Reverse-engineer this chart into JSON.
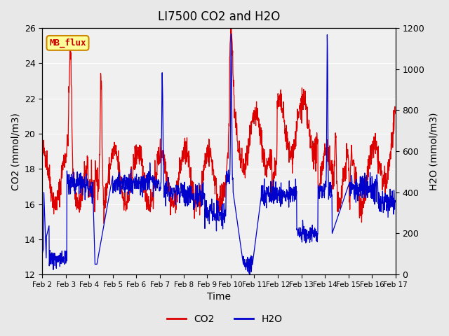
{
  "title": "LI7500 CO2 and H2O",
  "xlabel": "Time",
  "ylabel_left": "CO2 (mmol/m3)",
  "ylabel_right": "H2O (mmol/m3)",
  "x_tick_labels": [
    "Feb 2",
    "Feb 3",
    "Feb 4",
    "Feb 5",
    "Feb 6",
    "Feb 7",
    "Feb 8",
    "Feb 9",
    "Feb 10",
    "Feb 11",
    "Feb 12",
    "Feb 13",
    "Feb 14",
    "Feb 15",
    "Feb 16",
    "Feb 17"
  ],
  "ylim_left": [
    12,
    26
  ],
  "ylim_right": [
    0,
    1200
  ],
  "yticks_left": [
    12,
    14,
    16,
    18,
    20,
    22,
    24,
    26
  ],
  "yticks_right": [
    0,
    200,
    400,
    600,
    800,
    1000,
    1200
  ],
  "co2_color": "#dd0000",
  "h2o_color": "#0000cc",
  "bg_color": "#e8e8e8",
  "plot_bg_color": "#f0f0f0",
  "watermark_text": "MB_flux",
  "watermark_bg": "#ffff99",
  "watermark_border": "#cc8800",
  "watermark_text_color": "#cc0000",
  "legend_co2": "CO2",
  "legend_h2o": "H2O",
  "n_points": 1500,
  "seed": 42
}
